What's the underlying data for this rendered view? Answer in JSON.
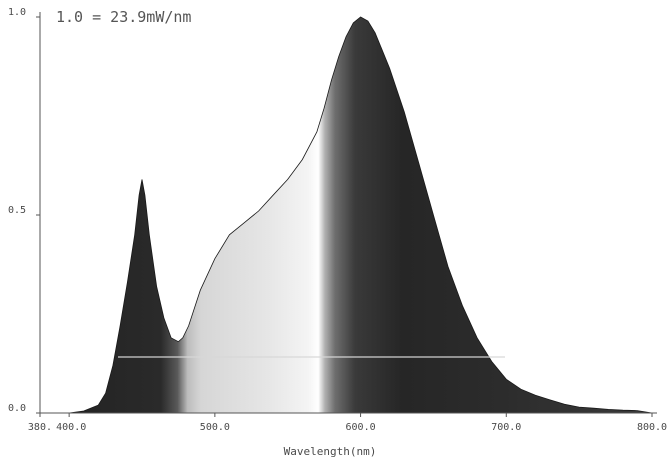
{
  "chart_data": {
    "type": "area",
    "note": "1.0 = 23.9mW/nm",
    "xlabel": "Wavelength(nm)",
    "ylabel": "",
    "xlim": [
      380,
      800
    ],
    "ylim": [
      0,
      1.0
    ],
    "x_tick_labels": [
      "380.",
      "400.0",
      "500.0",
      "600.0",
      "700.0",
      "800.0"
    ],
    "x_tick_values": [
      380,
      400,
      500,
      600,
      700,
      800
    ],
    "y_tick_labels": [
      "0.0",
      "0.5",
      "1.0"
    ],
    "y_tick_values": [
      0,
      0.5,
      1.0
    ],
    "grid": false,
    "fill": "wavelength-colored spectrum rendered in grayscale",
    "series": [
      {
        "x": [
          380,
          400,
          410,
          420,
          425,
          430,
          435,
          440,
          445,
          448,
          450,
          452,
          455,
          460,
          465,
          470,
          475,
          478,
          482,
          490,
          500,
          510,
          520,
          530,
          540,
          550,
          560,
          570,
          575,
          580,
          585,
          590,
          595,
          600,
          605,
          610,
          620,
          630,
          640,
          650,
          660,
          670,
          680,
          690,
          700,
          710,
          720,
          730,
          740,
          750,
          760,
          770,
          780,
          790,
          800
        ],
        "y": [
          0.0,
          0.0,
          0.005,
          0.02,
          0.05,
          0.12,
          0.22,
          0.33,
          0.45,
          0.55,
          0.59,
          0.55,
          0.45,
          0.32,
          0.24,
          0.19,
          0.18,
          0.19,
          0.22,
          0.31,
          0.39,
          0.45,
          0.48,
          0.51,
          0.55,
          0.59,
          0.64,
          0.71,
          0.77,
          0.84,
          0.9,
          0.95,
          0.985,
          1.0,
          0.99,
          0.96,
          0.87,
          0.76,
          0.63,
          0.5,
          0.37,
          0.27,
          0.19,
          0.13,
          0.085,
          0.06,
          0.045,
          0.033,
          0.022,
          0.015,
          0.012,
          0.009,
          0.007,
          0.006,
          0.0
        ]
      }
    ]
  }
}
